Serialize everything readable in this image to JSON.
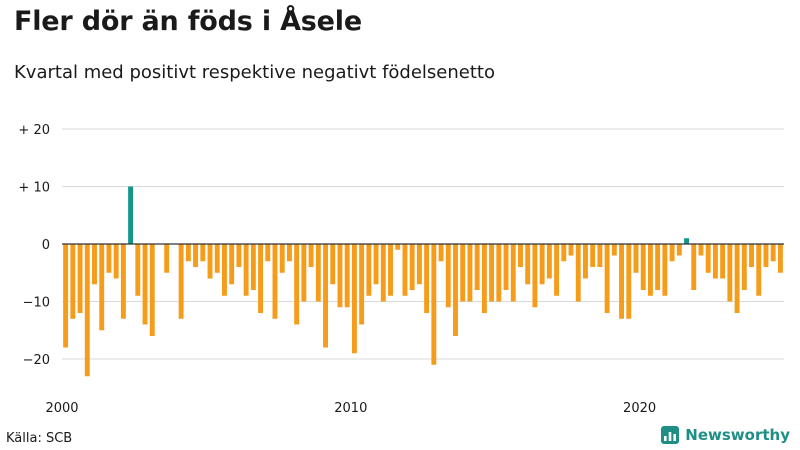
{
  "title": "Fler dör än föds i Åsele",
  "subtitle": "Kvartal med positivt respektive negativt födelsenetto",
  "source": "Källa: SCB",
  "brand": "Newsworthy",
  "colors": {
    "positive": "#12968a",
    "negative": "#f59c1a",
    "grid": "#d9d9d9",
    "zero_line": "#333333",
    "brand": "#1f8f86"
  },
  "chart_data": {
    "type": "bar",
    "title": "Fler dör än föds i Åsele",
    "subtitle": "Kvartal med positivt respektive negativt födelsenetto",
    "xlabel": "",
    "ylabel": "",
    "ylim": [
      -25,
      20
    ],
    "y_ticks": [
      {
        "value": 20,
        "label": "+ 20"
      },
      {
        "value": 10,
        "label": "+ 10"
      },
      {
        "value": 0,
        "label": "0"
      },
      {
        "value": -10,
        "label": "−10"
      },
      {
        "value": -20,
        "label": "−20"
      }
    ],
    "x_ticks": [
      {
        "year": 2000,
        "label": "2000"
      },
      {
        "year": 2010,
        "label": "2010"
      },
      {
        "year": 2020,
        "label": "2020"
      }
    ],
    "start_year": 2000,
    "start_quarter": 1,
    "grid": true,
    "values": [
      -18,
      -13,
      -12,
      -23,
      -7,
      -15,
      -5,
      -6,
      -13,
      10,
      -9,
      -14,
      -16,
      0,
      -5,
      0,
      -13,
      -3,
      -4,
      -3,
      -6,
      -5,
      -9,
      -7,
      -4,
      -9,
      -8,
      -12,
      -3,
      -13,
      -5,
      -3,
      -14,
      -10,
      -4,
      -10,
      -18,
      -7,
      -11,
      -11,
      -19,
      -14,
      -9,
      -7,
      -10,
      -9,
      -1,
      -9,
      -8,
      -7,
      -12,
      -21,
      -3,
      -11,
      -16,
      -10,
      -10,
      -8,
      -12,
      -10,
      -10,
      -8,
      -10,
      -4,
      -7,
      -11,
      -7,
      -6,
      -9,
      -3,
      -2,
      -10,
      -6,
      -4,
      -4,
      -12,
      -2,
      -13,
      -13,
      -5,
      -8,
      -9,
      -8,
      -9,
      -3,
      -2,
      1,
      -8,
      -2,
      -5,
      -6,
      -6,
      -10,
      -12,
      -8,
      -4,
      -9,
      -4,
      -3,
      -5
    ]
  }
}
